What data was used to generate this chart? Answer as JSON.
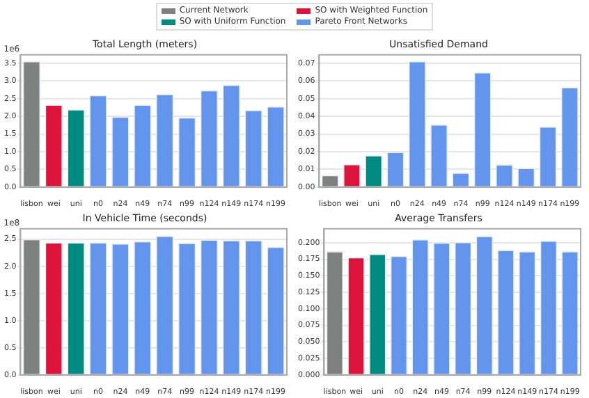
{
  "chart_data": [
    {
      "type": "bar",
      "title": "Total Length (meters)",
      "legend": "top",
      "stacked": true,
      "grid": "y",
      "ylabel": "1e6",
      "categories": [
        "lisbon",
        "wei",
        "uni",
        "n0",
        "n24",
        "n49",
        "n74",
        "n99",
        "n124",
        "n149",
        "n174",
        "n199"
      ],
      "ylim": [
        0,
        3.74
      ],
      "yticks": [
        {
          "value": 0,
          "label": "0.0"
        },
        {
          "value": 0.5,
          "label": "0.5"
        },
        {
          "value": 1,
          "label": "1.0"
        },
        {
          "value": 1.5,
          "label": "1.5"
        },
        {
          "value": 2,
          "label": "2.0"
        },
        {
          "value": 2.5,
          "label": "2.5"
        },
        {
          "value": 3,
          "label": "3.0"
        },
        {
          "value": 3.5,
          "label": "3.5"
        }
      ],
      "series": [
        {
          "name": "Current Network",
          "color": "#808080",
          "values": [
            3.56,
            null,
            null,
            null,
            null,
            null,
            null,
            null,
            null,
            null,
            null,
            null
          ]
        },
        {
          "name": "SO with Weighted Function",
          "color": "#dc143c",
          "values": [
            null,
            2.33,
            null,
            null,
            null,
            null,
            null,
            null,
            null,
            null,
            null,
            null
          ]
        },
        {
          "name": "SO with Uniform Function",
          "color": "#008b80",
          "values": [
            null,
            null,
            2.2,
            null,
            null,
            null,
            null,
            null,
            null,
            null,
            null,
            null
          ]
        },
        {
          "name": "Pareto Front Networks",
          "color": "#6495ed",
          "values": [
            null,
            null,
            null,
            2.6,
            1.99,
            2.33,
            2.63,
            1.97,
            2.74,
            2.89,
            2.18,
            2.28
          ]
        }
      ]
    },
    {
      "type": "bar",
      "title": "Unsatisfied Demand",
      "stacked": true,
      "grid": "y",
      "categories": [
        "lisbon",
        "wei",
        "uni",
        "n0",
        "n24",
        "n49",
        "n74",
        "n99",
        "n124",
        "n149",
        "n174",
        "n199"
      ],
      "ylim": [
        0,
        0.0748
      ],
      "yticks": [
        {
          "value": 0,
          "label": "0.00"
        },
        {
          "value": 0.01,
          "label": "0.01"
        },
        {
          "value": 0.02,
          "label": "0.02"
        },
        {
          "value": 0.03,
          "label": "0.03"
        },
        {
          "value": 0.04,
          "label": "0.04"
        },
        {
          "value": 0.05,
          "label": "0.05"
        },
        {
          "value": 0.06,
          "label": "0.06"
        },
        {
          "value": 0.07,
          "label": "0.07"
        }
      ],
      "series": [
        {
          "color": "#808080",
          "values": [
            0.0068,
            null,
            null,
            null,
            null,
            null,
            null,
            null,
            null,
            null,
            null,
            null
          ]
        },
        {
          "color": "#dc143c",
          "values": [
            null,
            0.013,
            null,
            null,
            null,
            null,
            null,
            null,
            null,
            null,
            null,
            null
          ]
        },
        {
          "color": "#008b80",
          "values": [
            null,
            null,
            0.018,
            null,
            null,
            null,
            null,
            null,
            null,
            null,
            null,
            null
          ]
        },
        {
          "color": "#6495ed",
          "values": [
            null,
            null,
            null,
            0.0198,
            0.0712,
            0.0354,
            0.0081,
            0.0649,
            0.0128,
            0.0108,
            0.0342,
            0.0565
          ]
        }
      ]
    },
    {
      "type": "bar",
      "title": "In Vehicle Time (seconds)",
      "stacked": true,
      "grid": "y",
      "ylabel": "1e8",
      "categories": [
        "lisbon",
        "wei",
        "uni",
        "n0",
        "n24",
        "n49",
        "n74",
        "n99",
        "n124",
        "n149",
        "n174",
        "n199"
      ],
      "ylim": [
        0,
        2.69
      ],
      "yticks": [
        {
          "value": 0,
          "label": "0.0"
        },
        {
          "value": 0.5,
          "label": "0.5"
        },
        {
          "value": 1,
          "label": "1.0"
        },
        {
          "value": 1.5,
          "label": "1.5"
        },
        {
          "value": 2,
          "label": "2.0"
        },
        {
          "value": 2.5,
          "label": "2.5"
        }
      ],
      "series": [
        {
          "color": "#808080",
          "values": [
            2.5,
            null,
            null,
            null,
            null,
            null,
            null,
            null,
            null,
            null,
            null,
            null
          ]
        },
        {
          "color": "#dc143c",
          "values": [
            null,
            2.44,
            null,
            null,
            null,
            null,
            null,
            null,
            null,
            null,
            null,
            null
          ]
        },
        {
          "color": "#008b80",
          "values": [
            null,
            null,
            2.44,
            null,
            null,
            null,
            null,
            null,
            null,
            null,
            null,
            null
          ]
        },
        {
          "color": "#6495ed",
          "values": [
            null,
            null,
            null,
            2.44,
            2.42,
            2.46,
            2.56,
            2.43,
            2.49,
            2.48,
            2.48,
            2.36
          ]
        }
      ]
    },
    {
      "type": "bar",
      "title": "Average Transfers",
      "stacked": true,
      "grid": "y",
      "categories": [
        "lisbon",
        "wei",
        "uni",
        "n0",
        "n24",
        "n49",
        "n74",
        "n99",
        "n124",
        "n149",
        "n174",
        "n199"
      ],
      "ylim": [
        0,
        0.221
      ],
      "yticks": [
        {
          "value": 0,
          "label": "0.000"
        },
        {
          "value": 0.025,
          "label": "0.025"
        },
        {
          "value": 0.05,
          "label": "0.050"
        },
        {
          "value": 0.075,
          "label": "0.075"
        },
        {
          "value": 0.1,
          "label": "0.100"
        },
        {
          "value": 0.125,
          "label": "0.125"
        },
        {
          "value": 0.15,
          "label": "0.150"
        },
        {
          "value": 0.175,
          "label": "0.175"
        },
        {
          "value": 0.2,
          "label": "0.200"
        }
      ],
      "series": [
        {
          "color": "#808080",
          "values": [
            0.187,
            null,
            null,
            null,
            null,
            null,
            null,
            null,
            null,
            null,
            null,
            null
          ]
        },
        {
          "color": "#dc143c",
          "values": [
            null,
            0.178,
            null,
            null,
            null,
            null,
            null,
            null,
            null,
            null,
            null,
            null
          ]
        },
        {
          "color": "#008b80",
          "values": [
            null,
            null,
            0.183,
            null,
            null,
            null,
            null,
            null,
            null,
            null,
            null,
            null
          ]
        },
        {
          "color": "#6495ed",
          "values": [
            null,
            null,
            null,
            0.18,
            0.205,
            0.2,
            0.201,
            0.21,
            0.189,
            0.187,
            0.203,
            0.187
          ]
        }
      ]
    }
  ]
}
